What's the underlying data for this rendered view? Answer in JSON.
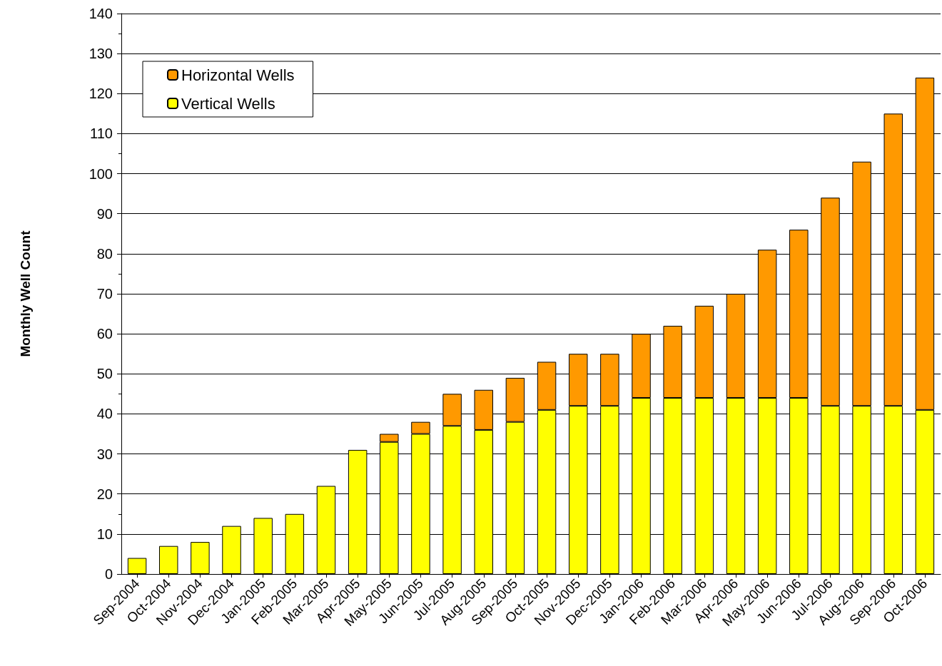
{
  "chart_data": {
    "type": "bar",
    "stacked": true,
    "ylabel": "Monthly Well Count",
    "categories": [
      "Sep-2004",
      "Oct-2004",
      "Nov-2004",
      "Dec-2004",
      "Jan-2005",
      "Feb-2005",
      "Mar-2005",
      "Apr-2005",
      "May-2005",
      "Jun-2005",
      "Jul-2005",
      "Aug-2005",
      "Sep-2005",
      "Oct-2005",
      "Nov-2005",
      "Dec-2005",
      "Jan-2006",
      "Feb-2006",
      "Mar-2006",
      "Apr-2006",
      "May-2006",
      "Jun-2006",
      "Jul-2006",
      "Aug-2006",
      "Sep-2006",
      "Oct-2006"
    ],
    "series": [
      {
        "name": "Vertical Wells",
        "color": "#ffff00",
        "values": [
          4,
          7,
          8,
          12,
          14,
          15,
          22,
          31,
          33,
          35,
          37,
          36,
          38,
          41,
          42,
          42,
          44,
          44,
          44,
          44,
          44,
          44,
          42,
          42,
          42,
          41
        ]
      },
      {
        "name": "Horizontal Wells",
        "color": "#ff9900",
        "values": [
          0,
          0,
          0,
          0,
          0,
          0,
          0,
          0,
          2,
          3,
          8,
          10,
          11,
          12,
          13,
          13,
          16,
          18,
          23,
          26,
          37,
          42,
          52,
          61,
          73,
          83
        ]
      }
    ],
    "ylim": [
      0,
      140
    ],
    "yticks": [
      0,
      10,
      20,
      30,
      40,
      50,
      60,
      70,
      80,
      90,
      100,
      110,
      120,
      130,
      140
    ],
    "grid": "y",
    "legend": "top left"
  }
}
